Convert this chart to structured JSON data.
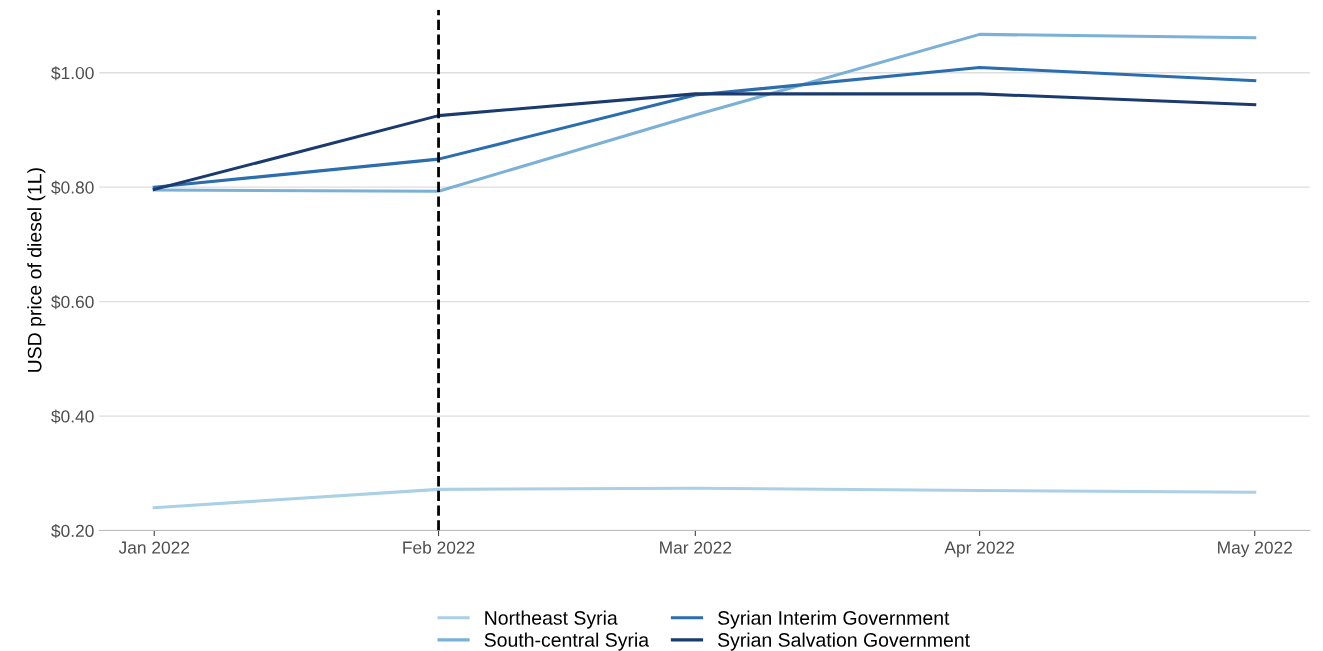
{
  "chart_data": {
    "type": "line",
    "ylabel": "USD price of diesel (1L)",
    "x": [
      "2022-01-01",
      "2022-02-01",
      "2022-03-01",
      "2022-04-01",
      "2022-05-01"
    ],
    "series": [
      {
        "name": "Northeast Syria",
        "color": "#abd0e6",
        "values": [
          0.24,
          0.272,
          0.274,
          0.27,
          0.267
        ]
      },
      {
        "name": "South-central Syria",
        "color": "#7bb1d6",
        "values": [
          0.795,
          0.793,
          0.926,
          1.067,
          1.061
        ]
      },
      {
        "name": "Syrian Interim Government",
        "color": "#2b6dad",
        "values": [
          0.8,
          0.849,
          0.961,
          1.009,
          0.986
        ]
      },
      {
        "name": "Syrian Salvation Government",
        "color": "#1b3a6e",
        "values": [
          0.796,
          0.925,
          0.963,
          0.963,
          0.944
        ]
      }
    ],
    "xlim": [
      "2021-12-26",
      "2022-05-07"
    ],
    "xticks": [
      {
        "value": "2022-01-01",
        "label": "Jan 2022"
      },
      {
        "value": "2022-02-01",
        "label": "Feb 2022"
      },
      {
        "value": "2022-03-01",
        "label": "Mar 2022"
      },
      {
        "value": "2022-04-01",
        "label": "Apr 2022"
      },
      {
        "value": "2022-05-01",
        "label": "May 2022"
      }
    ],
    "ylim": [
      0.2,
      1.11
    ],
    "yticks": [
      {
        "value": 0.2,
        "label": "$0.20"
      },
      {
        "value": 0.4,
        "label": "$0.40"
      },
      {
        "value": 0.6,
        "label": "$0.60"
      },
      {
        "value": 0.8,
        "label": "$0.80"
      },
      {
        "value": 1.0,
        "label": "$1.00"
      }
    ],
    "ref_lines": [
      {
        "axis": "x",
        "value": "2022-02-01",
        "color": "#000000",
        "line_style": "dashed"
      }
    ],
    "grid": "y",
    "legend": "bottom",
    "marker": "none",
    "line_style": "solid"
  }
}
